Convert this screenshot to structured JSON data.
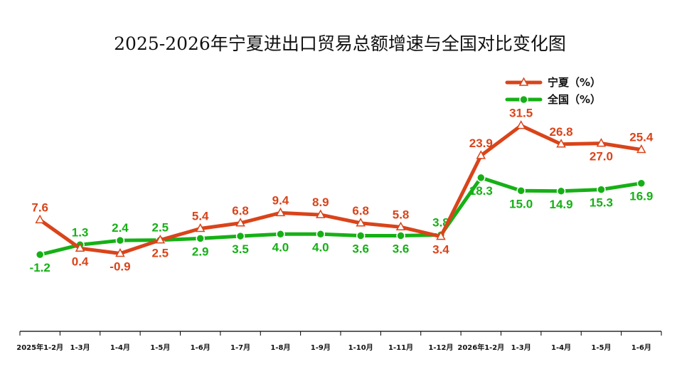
{
  "chart_data": {
    "type": "line",
    "title": "2025-2026年宁夏进出口贸易总额增速与全国对比变化图",
    "categories": [
      "2025年1-2月",
      "1-3月",
      "1-4月",
      "1-5月",
      "1-6月",
      "1-7月",
      "1-8月",
      "1-9月",
      "1-10月",
      "1-11月",
      "1-12月",
      "2026年1-2月",
      "1-3月",
      "1-4月",
      "1-5月",
      "1-6月"
    ],
    "series": [
      {
        "name": "宁夏（%）",
        "values": [
          7.6,
          0.4,
          -0.9,
          2.5,
          5.4,
          6.8,
          9.4,
          8.9,
          6.8,
          5.8,
          3.4,
          23.9,
          31.5,
          26.8,
          27.0,
          25.4
        ],
        "labels": [
          "7.6",
          "0.4",
          "-0.9",
          "2.5",
          "5.4",
          "6.8",
          "9.4",
          "8.9",
          "6.8",
          "5.8",
          "3.4",
          "23.9",
          "31.5",
          "26.8",
          "27.0",
          "25.4"
        ],
        "color": "#D9441A",
        "marker": "triangle"
      },
      {
        "name": "全国（%）",
        "values": [
          -1.2,
          1.3,
          2.4,
          2.5,
          2.9,
          3.5,
          4.0,
          4.0,
          3.6,
          3.6,
          3.8,
          18.3,
          15.0,
          14.9,
          15.3,
          16.9
        ],
        "labels": [
          "-1.2",
          "1.3",
          "2.4",
          "2.5",
          "2.9",
          "3.5",
          "4.0",
          "4.0",
          "3.6",
          "3.6",
          "3.8",
          "18.3",
          "15.0",
          "14.9",
          "15.3",
          "16.9"
        ],
        "color": "#16B016",
        "marker": "circle"
      }
    ],
    "legend_position": "top-right",
    "grid": false,
    "ylim": [
      -12,
      42
    ]
  }
}
